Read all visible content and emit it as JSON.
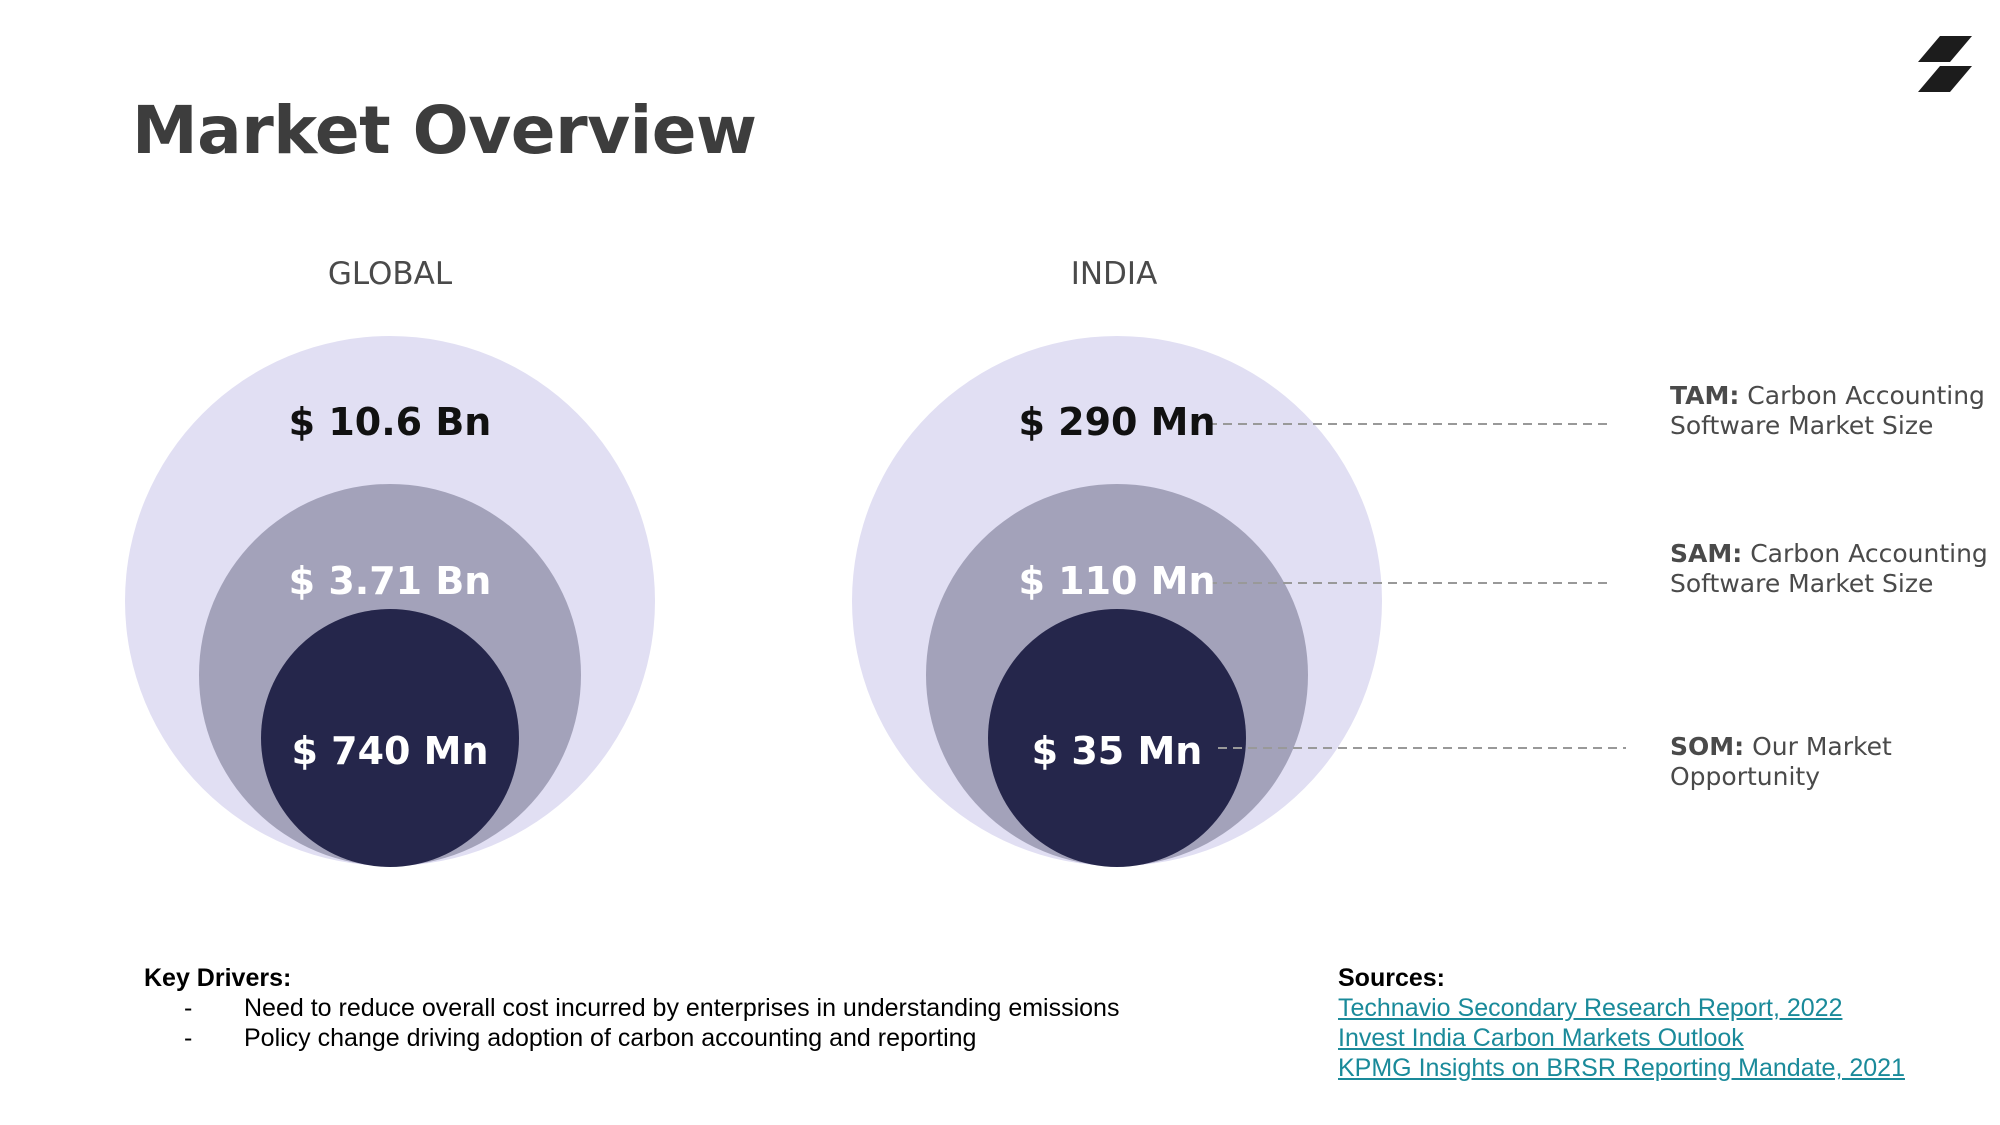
{
  "title": "Market Overview",
  "colors": {
    "tam_fill": "#e1dff3",
    "sam_fill": "#a3a2ba",
    "som_fill": "#25264b",
    "title": "#3d3d3d",
    "link": "#1a8a9a",
    "connector": "#999999"
  },
  "regions": [
    {
      "label": "GLOBAL",
      "tam": "$ 10.6 Bn",
      "sam": "$ 3.71 Bn",
      "som": "$ 740 Mn"
    },
    {
      "label": "INDIA",
      "tam": "$ 290 Mn",
      "sam": "$ 110 Mn",
      "som": "$ 35 Mn"
    }
  ],
  "legend": [
    {
      "key": "TAM:",
      "text": "Carbon Accounting Software Market Size"
    },
    {
      "key": "SAM:",
      "text": "Carbon Accounting Software Market Size"
    },
    {
      "key": "SOM:",
      "text": "Our Market Opportunity"
    }
  ],
  "key_drivers": {
    "heading": "Key Drivers:",
    "items": [
      "Need to reduce overall cost incurred by enterprises in understanding emissions",
      "Policy change driving adoption of carbon accounting and reporting"
    ]
  },
  "sources": {
    "heading": "Sources:",
    "links": [
      "Technavio Secondary Research Report, 2022",
      "Invest India Carbon Markets Outlook",
      "KPMG Insights on BRSR Reporting Mandate, 2021"
    ]
  },
  "icons": {
    "logo": "double-slash-logo-icon"
  }
}
